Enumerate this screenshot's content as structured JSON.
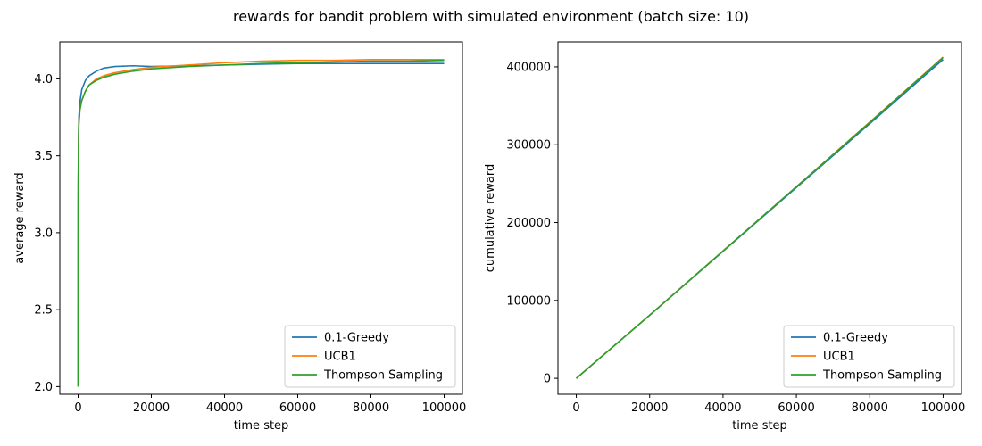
{
  "title": "rewards for bandit problem with simulated environment (batch size: 10)",
  "colors": {
    "greedy": "#1f77b4",
    "ucb1": "#ff7f0e",
    "thompson": "#2ca02c"
  },
  "chart_data": [
    {
      "type": "line",
      "xlabel": "time step",
      "ylabel": "average reward",
      "xlim": [
        -5000,
        105000
      ],
      "ylim": [
        1.95,
        4.24
      ],
      "xticks": [
        0,
        20000,
        40000,
        60000,
        80000,
        100000
      ],
      "xtick_labels": [
        "0",
        "20000",
        "40000",
        "60000",
        "80000",
        "100000"
      ],
      "yticks": [
        2.0,
        2.5,
        3.0,
        3.5,
        4.0
      ],
      "ytick_labels": [
        "2.0",
        "2.5",
        "3.0",
        "3.5",
        "4.0"
      ],
      "legend_position": "lower-right",
      "series": [
        {
          "name": "0.1-Greedy",
          "color_key": "greedy",
          "x": [
            0,
            10,
            30,
            100,
            200,
            500,
            1000,
            2000,
            3000,
            5000,
            7000,
            10000,
            15000,
            20000,
            30000,
            40000,
            50000,
            60000,
            70000,
            80000,
            90000,
            100000
          ],
          "y": [
            2.0,
            2.6,
            3.3,
            3.6,
            3.75,
            3.85,
            3.93,
            3.99,
            4.02,
            4.05,
            4.07,
            4.08,
            4.085,
            4.08,
            4.085,
            4.09,
            4.095,
            4.1,
            4.1,
            4.1,
            4.1,
            4.1
          ]
        },
        {
          "name": "UCB1",
          "color_key": "ucb1",
          "x": [
            0,
            10,
            30,
            100,
            200,
            500,
            1000,
            2000,
            3000,
            5000,
            7000,
            10000,
            15000,
            20000,
            30000,
            40000,
            50000,
            60000,
            70000,
            80000,
            90000,
            100000
          ],
          "y": [
            2.0,
            2.5,
            3.2,
            3.55,
            3.72,
            3.8,
            3.86,
            3.92,
            3.96,
            4.0,
            4.02,
            4.04,
            4.06,
            4.075,
            4.09,
            4.105,
            4.115,
            4.12,
            4.12,
            4.125,
            4.125,
            4.125
          ]
        },
        {
          "name": "Thompson Sampling",
          "color_key": "thompson",
          "x": [
            0,
            10,
            30,
            100,
            200,
            500,
            1000,
            2000,
            3000,
            5000,
            7000,
            10000,
            15000,
            20000,
            30000,
            40000,
            50000,
            60000,
            70000,
            80000,
            90000,
            100000
          ],
          "y": [
            2.0,
            2.5,
            3.2,
            3.55,
            3.7,
            3.8,
            3.86,
            3.92,
            3.96,
            3.99,
            4.01,
            4.03,
            4.05,
            4.065,
            4.08,
            4.09,
            4.1,
            4.105,
            4.11,
            4.115,
            4.115,
            4.12
          ]
        }
      ]
    },
    {
      "type": "line",
      "xlabel": "time step",
      "ylabel": "cumulative reward",
      "xlim": [
        -5000,
        105000
      ],
      "ylim": [
        -20500,
        432000
      ],
      "xticks": [
        0,
        20000,
        40000,
        60000,
        80000,
        100000
      ],
      "xtick_labels": [
        "0",
        "20000",
        "40000",
        "60000",
        "80000",
        "100000"
      ],
      "yticks": [
        0,
        100000,
        200000,
        300000,
        400000
      ],
      "ytick_labels": [
        "0",
        "100000",
        "200000",
        "300000",
        "400000"
      ],
      "legend_position": "lower-right",
      "series": [
        {
          "name": "0.1-Greedy",
          "color_key": "greedy",
          "x": [
            0,
            20000,
            40000,
            60000,
            80000,
            100000
          ],
          "y": [
            0,
            81000,
            163000,
            245000,
            327000,
            409500
          ]
        },
        {
          "name": "UCB1",
          "color_key": "ucb1",
          "x": [
            0,
            20000,
            40000,
            60000,
            80000,
            100000
          ],
          "y": [
            0,
            81000,
            163500,
            246000,
            329000,
            412500
          ]
        },
        {
          "name": "Thompson Sampling",
          "color_key": "thompson",
          "x": [
            0,
            20000,
            40000,
            60000,
            80000,
            100000
          ],
          "y": [
            0,
            81000,
            163500,
            246000,
            328500,
            412000
          ]
        }
      ]
    }
  ]
}
